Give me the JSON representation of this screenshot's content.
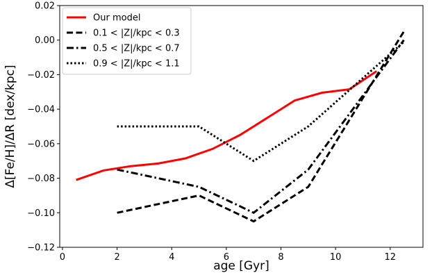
{
  "chart_data": {
    "type": "line",
    "xlabel": "age  [Gyr]",
    "ylabel": "Δ[Fe/H]/ΔR  [dex/kpc]",
    "xlim": [
      -0.1,
      13.2
    ],
    "ylim": [
      -0.12,
      0.02
    ],
    "xticks": [
      0,
      2,
      4,
      6,
      8,
      10,
      12
    ],
    "xtick_labels": [
      "0",
      "2",
      "4",
      "6",
      "8",
      "10",
      "12"
    ],
    "yticks": [
      -0.12,
      -0.1,
      -0.08,
      -0.06,
      -0.04,
      -0.02,
      0.0,
      0.02
    ],
    "ytick_labels": [
      "−0.12",
      "−0.10",
      "−0.08",
      "−0.06",
      "−0.04",
      "−0.02",
      "0.00",
      "0.02"
    ],
    "grid": false,
    "legend_position": "top-left",
    "series": [
      {
        "name": "Our model",
        "color": "#ff0000",
        "style": "solid",
        "x": [
          0.5,
          1.5,
          2.5,
          3.5,
          4.5,
          5.5,
          6.5,
          7.5,
          8.5,
          9.5,
          10.5,
          11.5
        ],
        "y": [
          -0.081,
          -0.0755,
          -0.073,
          -0.0715,
          -0.0685,
          -0.063,
          -0.055,
          -0.045,
          -0.035,
          -0.0305,
          -0.0285,
          -0.018
        ]
      },
      {
        "name": "0.1 < |Z|/kpc < 0.3",
        "color": "#000000",
        "style": "dashed",
        "x": [
          2,
          5,
          7,
          9,
          12.5
        ],
        "y": [
          -0.1,
          -0.09,
          -0.105,
          -0.085,
          0.005
        ]
      },
      {
        "name": "0.5 < |Z|/kpc < 0.7",
        "color": "#000000",
        "style": "dashdot",
        "x": [
          2,
          5,
          7,
          9,
          12.5
        ],
        "y": [
          -0.075,
          -0.085,
          -0.1,
          -0.075,
          0.0
        ]
      },
      {
        "name": "0.9 < |Z|/kpc < 1.1",
        "color": "#000000",
        "style": "dotted",
        "x": [
          2,
          5,
          7,
          9,
          12.5
        ],
        "y": [
          -0.05,
          -0.05,
          -0.07,
          -0.05,
          -0.001
        ]
      }
    ]
  }
}
